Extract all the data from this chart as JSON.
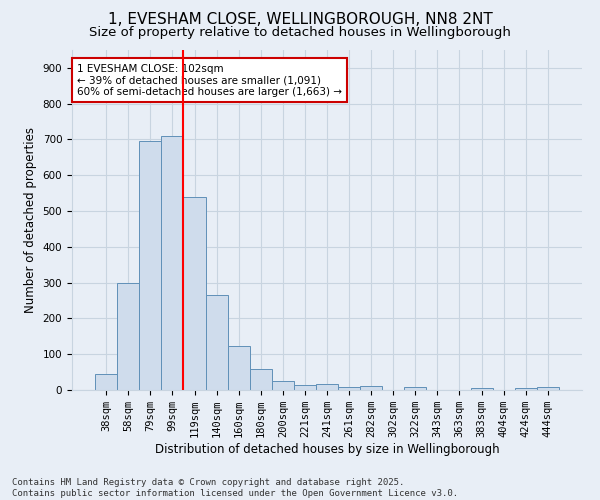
{
  "title_line1": "1, EVESHAM CLOSE, WELLINGBOROUGH, NN8 2NT",
  "title_line2": "Size of property relative to detached houses in Wellingborough",
  "xlabel": "Distribution of detached houses by size in Wellingborough",
  "ylabel": "Number of detached properties",
  "categories": [
    "38sqm",
    "58sqm",
    "79sqm",
    "99sqm",
    "119sqm",
    "140sqm",
    "160sqm",
    "180sqm",
    "200sqm",
    "221sqm",
    "241sqm",
    "261sqm",
    "282sqm",
    "302sqm",
    "322sqm",
    "343sqm",
    "363sqm",
    "383sqm",
    "404sqm",
    "424sqm",
    "444sqm"
  ],
  "values": [
    45,
    300,
    695,
    710,
    540,
    265,
    122,
    58,
    25,
    15,
    18,
    8,
    10,
    0,
    8,
    0,
    0,
    5,
    0,
    5,
    8
  ],
  "bar_color": "#cfdcec",
  "bar_edge_color": "#6090b8",
  "grid_color": "#c8d4e0",
  "background_color": "#e8eef6",
  "red_line_x": 3.5,
  "annotation_text": "1 EVESHAM CLOSE: 102sqm\n← 39% of detached houses are smaller (1,091)\n60% of semi-detached houses are larger (1,663) →",
  "annotation_box_color": "#ffffff",
  "annotation_box_edge_color": "#cc0000",
  "footnote": "Contains HM Land Registry data © Crown copyright and database right 2025.\nContains public sector information licensed under the Open Government Licence v3.0.",
  "ylim": [
    0,
    950
  ],
  "yticks": [
    0,
    100,
    200,
    300,
    400,
    500,
    600,
    700,
    800,
    900
  ],
  "title_fontsize": 11,
  "subtitle_fontsize": 9.5,
  "axis_label_fontsize": 8.5,
  "tick_fontsize": 7.5,
  "annotation_fontsize": 7.5,
  "footnote_fontsize": 6.5
}
